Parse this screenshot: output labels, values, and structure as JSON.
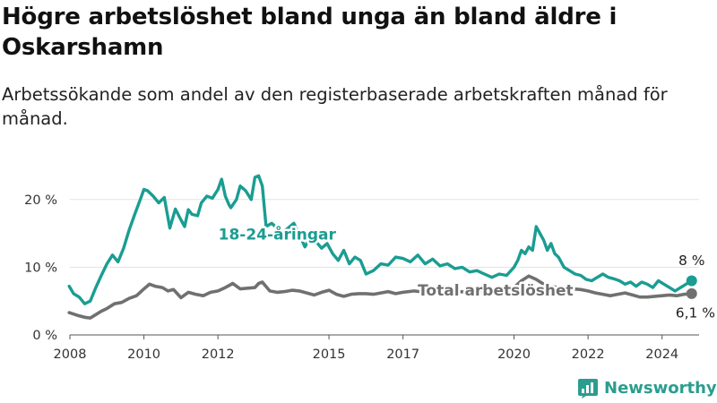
{
  "title": "Högre arbetslöshet bland unga än bland äldre i Oskarshamn",
  "subtitle": "Arbetssökande som andel av den registerbaserade arbetskraften månad för månad.",
  "brand": "Newsworthy",
  "colors": {
    "youth": "#1a9d92",
    "total": "#707070",
    "grid": "#e3e3e3",
    "axis": "#555555",
    "brand": "#2b9d8f"
  },
  "chart_data": {
    "type": "line",
    "title": "Högre arbetslöshet bland unga än bland äldre i Oskarshamn",
    "subtitle": "Arbetssökande som andel av den registerbaserade arbetskraften månad för månad.",
    "xlabel": "",
    "ylabel": "",
    "x_unit": "year",
    "xlim": [
      2008.0,
      2025.0
    ],
    "ylim": [
      0,
      25
    ],
    "y_ticks": [
      0,
      10,
      20
    ],
    "y_tick_labels": [
      "0 %",
      "10 %",
      "20 %"
    ],
    "x_ticks": [
      2008,
      2010,
      2012,
      2015,
      2017,
      2020,
      2022,
      2024
    ],
    "x_tick_labels": [
      "2008",
      "2010",
      "2012",
      "2015",
      "2017",
      "2020",
      "2022",
      "2024"
    ],
    "grid": "horizontal",
    "legend": "none (direct labels)",
    "series": [
      {
        "name": "18-24-åringar",
        "end_label": "8 %",
        "x": [
          2007.98,
          2008.1,
          2008.25,
          2008.4,
          2008.55,
          2008.7,
          2008.85,
          2009.0,
          2009.15,
          2009.3,
          2009.45,
          2009.6,
          2009.75,
          2009.9,
          2010.0,
          2010.1,
          2010.25,
          2010.4,
          2010.55,
          2010.7,
          2010.85,
          2011.0,
          2011.1,
          2011.2,
          2011.3,
          2011.45,
          2011.55,
          2011.7,
          2011.85,
          2012.0,
          2012.1,
          2012.2,
          2012.3,
          2012.35,
          2012.5,
          2012.6,
          2012.75,
          2012.9,
          2013.0,
          2013.1,
          2013.2,
          2013.3,
          2013.45,
          2013.6,
          2013.75,
          2013.9,
          2014.05,
          2014.2,
          2014.35,
          2014.5,
          2014.65,
          2014.8,
          2014.95,
          2015.1,
          2015.25,
          2015.4,
          2015.55,
          2015.7,
          2015.85,
          2016.0,
          2016.2,
          2016.4,
          2016.6,
          2016.8,
          2017.0,
          2017.2,
          2017.4,
          2017.6,
          2017.8,
          2018.0,
          2018.2,
          2018.4,
          2018.6,
          2018.8,
          2019.0,
          2019.2,
          2019.4,
          2019.6,
          2019.8,
          2020.0,
          2020.1,
          2020.2,
          2020.3,
          2020.4,
          2020.5,
          2020.6,
          2020.7,
          2020.8,
          2020.9,
          2021.0,
          2021.1,
          2021.2,
          2021.35,
          2021.5,
          2021.65,
          2021.8,
          2021.95,
          2022.1,
          2022.25,
          2022.4,
          2022.55,
          2022.7,
          2022.85,
          2023.0,
          2023.15,
          2023.3,
          2023.45,
          2023.6,
          2023.75,
          2023.9,
          2024.05,
          2024.2,
          2024.35,
          2024.5,
          2024.65,
          2024.8
        ],
        "values": [
          7.2,
          6.1,
          5.6,
          4.6,
          5.0,
          7.0,
          8.8,
          10.5,
          11.8,
          10.8,
          12.8,
          15.5,
          17.8,
          20.0,
          21.5,
          21.3,
          20.5,
          19.5,
          20.3,
          15.8,
          18.6,
          17.0,
          16.0,
          18.5,
          17.8,
          17.6,
          19.5,
          20.5,
          20.2,
          21.5,
          23.0,
          20.5,
          19.2,
          18.8,
          20.0,
          22.0,
          21.3,
          20.0,
          23.3,
          23.5,
          22.0,
          16.0,
          16.5,
          15.8,
          15.2,
          15.8,
          16.5,
          14.8,
          13.0,
          14.5,
          13.8,
          12.8,
          13.5,
          12.0,
          11.0,
          12.5,
          10.5,
          11.5,
          11.0,
          9.0,
          9.5,
          10.5,
          10.3,
          11.5,
          11.3,
          10.8,
          11.8,
          10.5,
          11.2,
          10.2,
          10.5,
          9.8,
          10.0,
          9.3,
          9.5,
          9.0,
          8.5,
          9.0,
          8.8,
          10.0,
          11.0,
          12.5,
          12.0,
          13.0,
          12.5,
          16.0,
          15.0,
          14.0,
          12.5,
          13.5,
          12.0,
          11.5,
          10.0,
          9.5,
          9.0,
          8.8,
          8.2,
          8.0,
          8.5,
          9.0,
          8.5,
          8.3,
          8.0,
          7.5,
          7.8,
          7.2,
          7.8,
          7.5,
          7.0,
          8.0,
          7.5,
          7.0,
          6.5,
          7.0,
          7.5,
          8.0
        ]
      },
      {
        "name": "Total arbetslöshet",
        "end_label": "6,1 %",
        "x": [
          2007.98,
          2008.2,
          2008.4,
          2008.55,
          2008.7,
          2008.85,
          2009.0,
          2009.2,
          2009.4,
          2009.6,
          2009.8,
          2010.0,
          2010.15,
          2010.3,
          2010.5,
          2010.65,
          2010.8,
          2011.0,
          2011.2,
          2011.4,
          2011.6,
          2011.8,
          2012.0,
          2012.2,
          2012.4,
          2012.6,
          2012.8,
          2013.0,
          2013.1,
          2013.2,
          2013.4,
          2013.6,
          2013.8,
          2014.0,
          2014.2,
          2014.4,
          2014.6,
          2014.8,
          2015.0,
          2015.2,
          2015.4,
          2015.6,
          2015.8,
          2016.0,
          2016.2,
          2016.4,
          2016.6,
          2016.8,
          2017.0,
          2017.3,
          2017.6,
          2017.9,
          2018.2,
          2018.5,
          2018.8,
          2019.1,
          2019.4,
          2019.7,
          2020.0,
          2020.2,
          2020.4,
          2020.6,
          2020.8,
          2021.0,
          2021.2,
          2021.4,
          2021.6,
          2021.8,
          2022.0,
          2022.2,
          2022.4,
          2022.6,
          2022.8,
          2023.0,
          2023.2,
          2023.4,
          2023.6,
          2023.8,
          2024.0,
          2024.2,
          2024.4,
          2024.6,
          2024.8
        ],
        "values": [
          3.3,
          2.9,
          2.6,
          2.5,
          3.0,
          3.5,
          3.9,
          4.6,
          4.8,
          5.4,
          5.8,
          6.8,
          7.5,
          7.2,
          7.0,
          6.5,
          6.7,
          5.5,
          6.3,
          6.0,
          5.8,
          6.3,
          6.5,
          7.0,
          7.6,
          6.8,
          6.9,
          7.0,
          7.6,
          7.8,
          6.5,
          6.3,
          6.4,
          6.6,
          6.5,
          6.2,
          5.9,
          6.3,
          6.6,
          6.0,
          5.7,
          6.0,
          6.1,
          6.1,
          6.0,
          6.2,
          6.4,
          6.1,
          6.3,
          6.5,
          6.3,
          6.5,
          6.6,
          6.4,
          6.3,
          6.5,
          6.4,
          6.2,
          7.0,
          8.0,
          8.7,
          8.2,
          7.5,
          7.2,
          7.0,
          6.8,
          6.8,
          6.7,
          6.5,
          6.2,
          6.0,
          5.8,
          6.0,
          6.2,
          5.9,
          5.6,
          5.6,
          5.7,
          5.8,
          5.9,
          5.8,
          6.0,
          6.1
        ]
      }
    ]
  }
}
